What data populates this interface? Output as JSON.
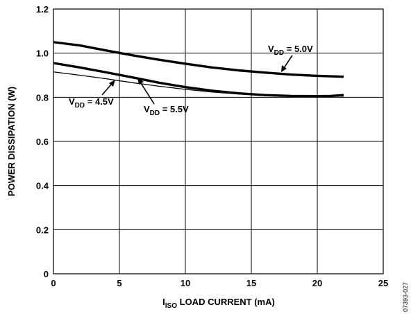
{
  "chart_data": {
    "type": "line",
    "xlabel_main": "I",
    "xlabel_sub": "ISO",
    "xlabel_rest": " LOAD CURRENT (mA)",
    "ylabel": "POWER DISSIPATION (W)",
    "xlim": [
      0,
      25
    ],
    "ylim": [
      0,
      1.2
    ],
    "x_ticks": [
      "0",
      "5",
      "10",
      "15",
      "20",
      "25"
    ],
    "y_ticks": [
      "0",
      "0.2",
      "0.4",
      "0.6",
      "0.8",
      "1.0",
      "1.2"
    ],
    "grid": true,
    "figure_id": "07393-027",
    "series": [
      {
        "label_main": "V",
        "label_sub": "DD",
        "label_rest": " = 5.0V",
        "x": [
          0,
          2,
          4,
          6,
          8,
          10,
          12,
          14,
          16,
          18,
          20,
          22
        ],
        "y": [
          1.05,
          1.035,
          1.012,
          0.99,
          0.97,
          0.952,
          0.935,
          0.922,
          0.912,
          0.903,
          0.897,
          0.893
        ]
      },
      {
        "label_main": "V",
        "label_sub": "DD",
        "label_rest": " = 5.5V",
        "x": [
          0,
          2,
          4,
          6,
          8,
          10,
          12,
          14,
          16,
          18,
          20,
          21,
          22
        ],
        "y": [
          0.955,
          0.935,
          0.913,
          0.89,
          0.866,
          0.846,
          0.83,
          0.818,
          0.81,
          0.806,
          0.805,
          0.806,
          0.81
        ]
      },
      {
        "label_main": "V",
        "label_sub": "DD",
        "label_rest": " = 4.5V",
        "x": [
          0,
          2,
          4,
          6,
          8,
          10,
          12,
          14,
          16,
          18,
          20,
          22
        ],
        "y": [
          0.915,
          0.9,
          0.884,
          0.866,
          0.85,
          0.836,
          0.824,
          0.815,
          0.809,
          0.806,
          0.805,
          0.805
        ]
      }
    ]
  }
}
